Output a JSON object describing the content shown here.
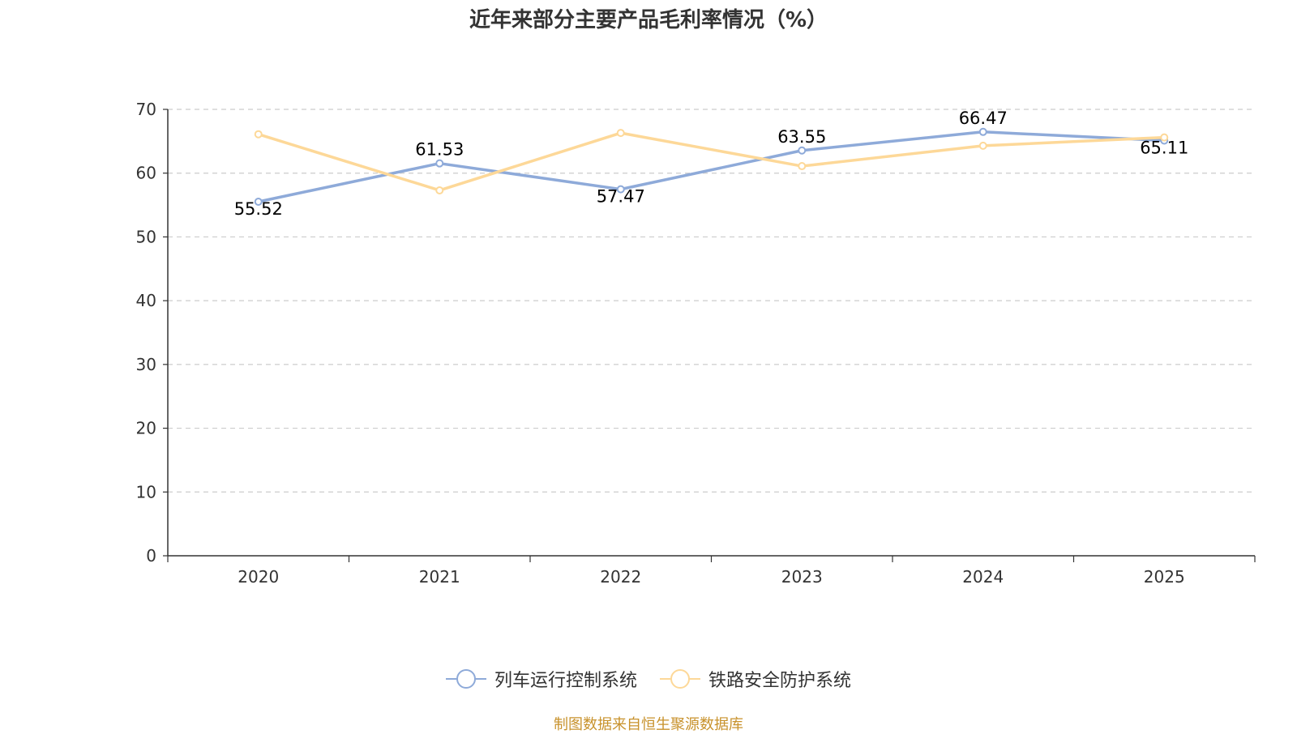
{
  "chart_data": {
    "type": "line",
    "title": "近年来部分主要产品毛利率情况（%）",
    "categories": [
      "2020",
      "2021",
      "2022",
      "2023",
      "2024",
      "2025"
    ],
    "ylim": [
      0,
      70
    ],
    "yticks": [
      0,
      10,
      20,
      30,
      40,
      50,
      60,
      70
    ],
    "grid": true,
    "legend_position": "bottom",
    "series": [
      {
        "name": "列车运行控制系统",
        "color": "#8eaad9",
        "values": [
          55.52,
          61.53,
          57.47,
          63.55,
          66.47,
          65.11
        ],
        "labels": [
          "55.52",
          "61.53",
          "57.47",
          "63.55",
          "66.47",
          "65.11"
        ]
      },
      {
        "name": "铁路安全防护系统",
        "color": "#fdd898",
        "values": [
          66.1,
          57.3,
          66.3,
          61.1,
          64.3,
          65.6
        ]
      }
    ]
  },
  "source": {
    "text": "制图数据来自恒生聚源数据库",
    "color": "#c8922c"
  }
}
